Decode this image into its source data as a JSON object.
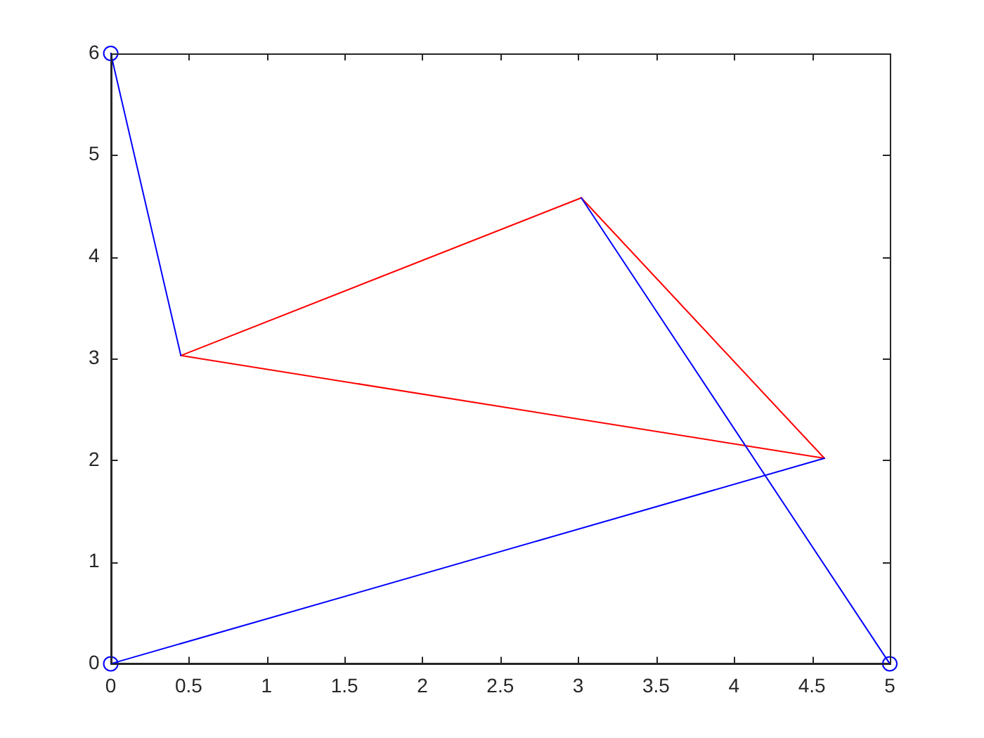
{
  "chart_data": {
    "type": "line",
    "xlim": [
      0,
      5
    ],
    "ylim": [
      0,
      6
    ],
    "xticks": [
      0,
      0.5,
      1,
      1.5,
      2,
      2.5,
      3,
      3.5,
      4,
      4.5,
      5
    ],
    "yticks": [
      0,
      1,
      2,
      3,
      4,
      5,
      6
    ],
    "grid": false,
    "legend": false,
    "marker": "none",
    "line_style": "solid",
    "series": [
      {
        "color": "#0000ff",
        "x": [
          0,
          0.45
        ],
        "values": [
          6,
          3.03
        ]
      },
      {
        "color": "#0000ff",
        "x": [
          0,
          4.58
        ],
        "values": [
          0,
          2.02
        ]
      },
      {
        "color": "#0000ff",
        "x": [
          3.02,
          5
        ],
        "values": [
          4.58,
          0
        ]
      },
      {
        "color": "#ff0000",
        "x": [
          0.45,
          3.02
        ],
        "values": [
          3.03,
          4.58
        ]
      },
      {
        "color": "#ff0000",
        "x": [
          3.02,
          4.58
        ],
        "values": [
          4.58,
          2.02
        ]
      },
      {
        "color": "#ff0000",
        "x": [
          0.45,
          4.58
        ],
        "values": [
          3.03,
          2.02
        ]
      },
      {
        "type": "scatter",
        "color": "#0000ff",
        "marker": "circle",
        "x": [
          0,
          0,
          5
        ],
        "values": [
          6,
          0,
          0
        ]
      }
    ]
  }
}
